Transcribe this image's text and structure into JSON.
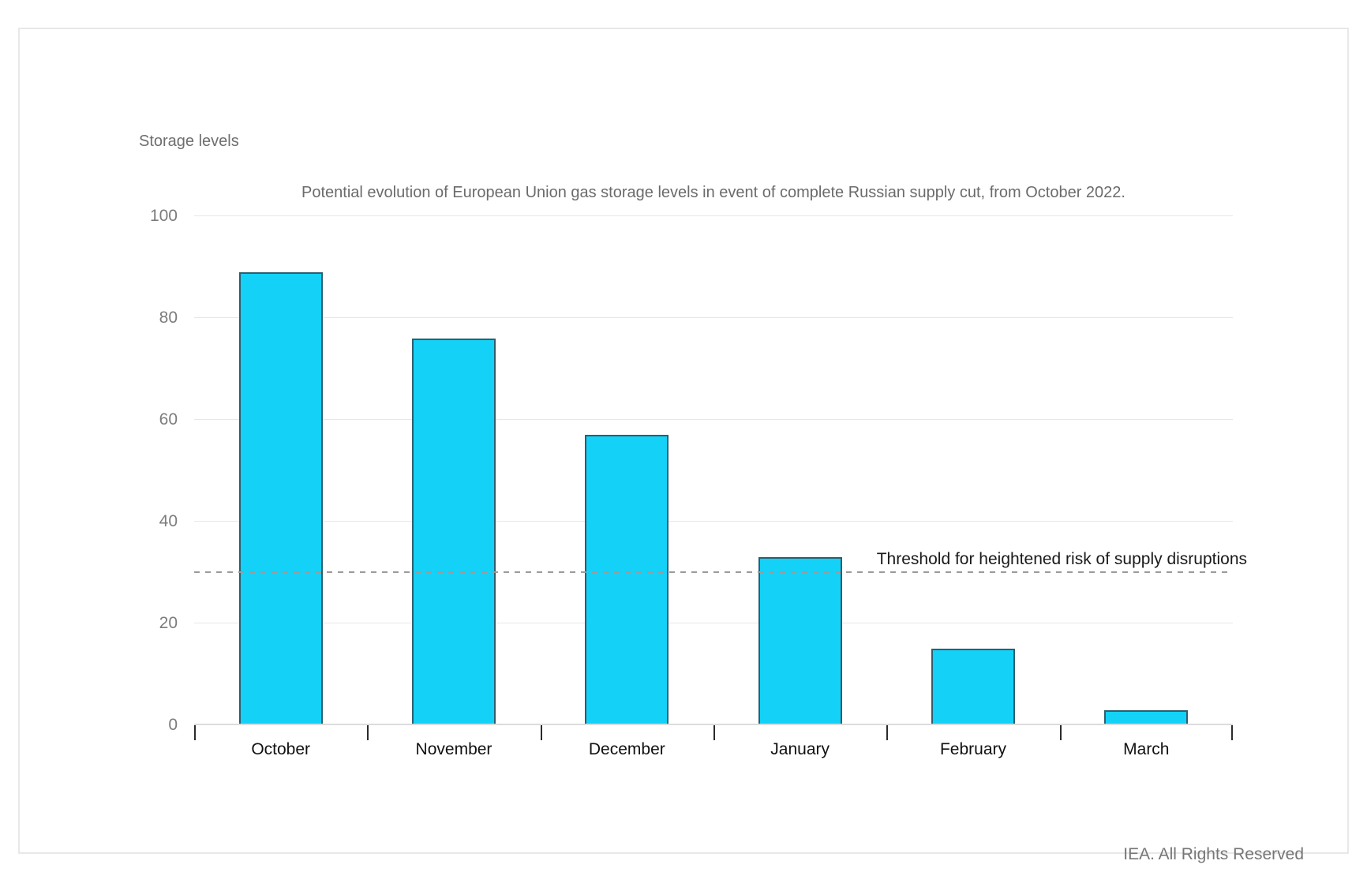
{
  "page": {
    "watermark": "IEA. All Rights Reserved"
  },
  "chart_data": {
    "type": "bar",
    "title": "Potential evolution of European Union gas storage levels in event of complete Russian supply cut, from October 2022.",
    "ylabel": "Storage levels",
    "xlabel": "",
    "categories": [
      "October",
      "November",
      "December",
      "January",
      "February",
      "March"
    ],
    "values": [
      89,
      76,
      57,
      33,
      15,
      3
    ],
    "yticks": [
      0,
      20,
      40,
      60,
      80,
      100
    ],
    "ylim": [
      0,
      100
    ],
    "grid": "horizontal",
    "legend": "none",
    "threshold": {
      "value": 30,
      "label": "Threshold for heightened risk of supply disruptions"
    },
    "colors": {
      "bar_fill": "#14d1f7",
      "bar_border": "#2f5e6e",
      "gridline": "#e7e7e7",
      "threshold_line": "#9b9b9b",
      "title_text": "#6b6b6b",
      "axis_label_text": "#7c7c7c",
      "category_text": "#111111"
    }
  }
}
